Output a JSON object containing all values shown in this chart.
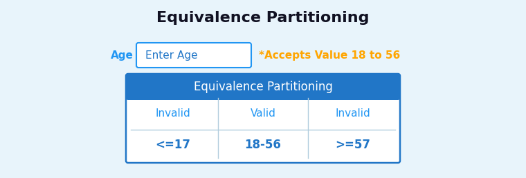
{
  "title": "Equivalence Partitioning",
  "title_fontsize": 16,
  "title_color": "#111122",
  "title_fontweight": "bold",
  "background_color": "#e8f4fb",
  "age_label": "Age",
  "age_label_color": "#2196F3",
  "age_label_fontsize": 11,
  "input_placeholder": "Enter Age",
  "input_placeholder_color": "#2176C7",
  "input_box_edgecolor": "#2196F3",
  "input_bg_color": "#ffffff",
  "input_placeholder_fontsize": 11,
  "accepts_text": "*Accepts Value 18 to 56",
  "accepts_color": "#FFA500",
  "accepts_fontsize": 11,
  "table_header_text": "Equivalence Partitioning",
  "table_header_bg": "#2176C7",
  "table_header_color": "#ffffff",
  "table_header_fontsize": 12,
  "table_bg": "#ffffff",
  "table_border_color": "#2176C7",
  "table_col_header": [
    "Invalid",
    "Valid",
    "Invalid"
  ],
  "table_col_header_color": "#2196F3",
  "table_col_header_fontsize": 11,
  "table_values": [
    "<=17",
    "18-56",
    ">=57"
  ],
  "table_values_color": "#2176C7",
  "table_values_fontsize": 12,
  "table_row_separator_color": "#b0ccdd",
  "table_divider_color": "#b0ccdd"
}
